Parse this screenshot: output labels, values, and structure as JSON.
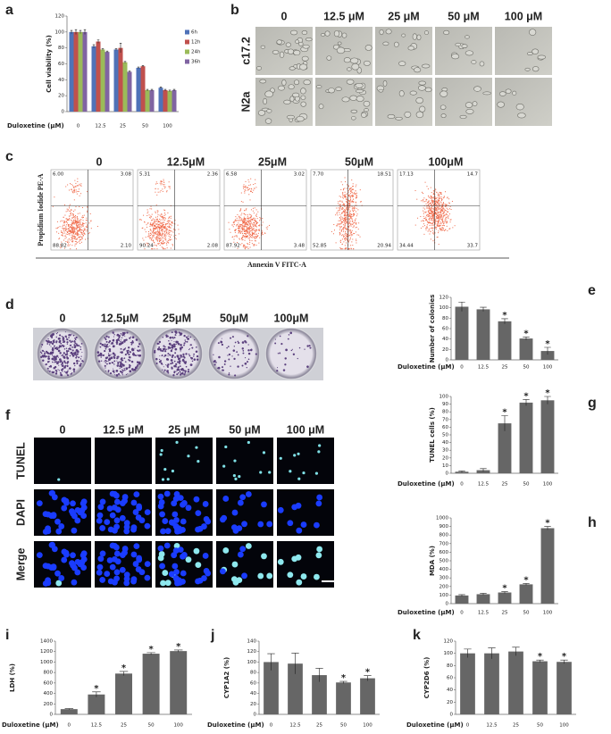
{
  "chart_data": [
    {
      "type": "bar",
      "label": "a",
      "ylabel": "Cell viability (%)",
      "xlabel": "Duloxetine (μM)",
      "categories": [
        "0",
        "12.5",
        "25",
        "50",
        "100"
      ],
      "ylim": [
        0,
        120
      ],
      "yticks": [
        0,
        20,
        40,
        60,
        80,
        100,
        120
      ],
      "legend": "right",
      "series": [
        {
          "name": "6h",
          "color": "#4f72b8",
          "values": [
            100,
            82,
            78,
            55,
            30
          ],
          "errors": [
            2,
            2,
            1,
            1,
            1
          ]
        },
        {
          "name": "12h",
          "color": "#c0504d",
          "values": [
            100,
            88,
            80,
            57,
            27
          ],
          "errors": [
            3,
            2,
            6,
            1,
            1
          ]
        },
        {
          "name": "24h",
          "color": "#9bbb59",
          "values": [
            100,
            78,
            62,
            27,
            26
          ],
          "errors": [
            2,
            1,
            1,
            1,
            1
          ]
        },
        {
          "name": "36h",
          "color": "#8064a2",
          "values": [
            100,
            75,
            50,
            27,
            27
          ],
          "errors": [
            3,
            1,
            1,
            1,
            1
          ]
        }
      ]
    },
    {
      "type": "bar",
      "label": "e",
      "ylabel": "Number of colonies",
      "xlabel": "Duloxetine (μM)",
      "categories": [
        "0",
        "12.5",
        "25",
        "50",
        "100"
      ],
      "ylim": [
        0,
        120
      ],
      "yticks": [
        0,
        20,
        40,
        60,
        80,
        100,
        120
      ],
      "color": "#666666",
      "values": [
        102,
        97,
        74,
        41,
        17
      ],
      "errors": [
        9,
        4,
        5,
        3,
        7
      ],
      "significance": [
        null,
        null,
        "*",
        "*",
        "*"
      ]
    },
    {
      "type": "bar",
      "label": "g",
      "ylabel": "TUNEL cells (%)",
      "xlabel": "Duloxetine (μM)",
      "categories": [
        "0",
        "12.5",
        "25",
        "50",
        "100"
      ],
      "ylim": [
        0,
        100
      ],
      "yticks": [
        0,
        10,
        20,
        30,
        40,
        50,
        60,
        70,
        80,
        90,
        100
      ],
      "color": "#666666",
      "values": [
        2,
        4,
        65,
        92,
        95
      ],
      "errors": [
        1,
        2,
        10,
        4,
        5
      ],
      "significance": [
        null,
        null,
        "*",
        "*",
        "*"
      ]
    },
    {
      "type": "bar",
      "label": "h",
      "ylabel": "MDA (%)",
      "xlabel": "Duloxetine (μM)",
      "categories": [
        "0",
        "12.5",
        "25",
        "50",
        "100"
      ],
      "ylim": [
        0,
        1000
      ],
      "yticks": [
        0,
        100,
        200,
        300,
        400,
        500,
        600,
        700,
        800,
        900,
        1000
      ],
      "color": "#666666",
      "values": [
        95,
        110,
        130,
        225,
        880
      ],
      "errors": [
        10,
        10,
        10,
        10,
        20
      ],
      "significance": [
        null,
        null,
        "*",
        "*",
        "*"
      ]
    },
    {
      "type": "bar",
      "label": "i",
      "ylabel": "LDH (%)",
      "xlabel": "Duloxetine (μM)",
      "categories": [
        "0",
        "12.5",
        "25",
        "50",
        "100"
      ],
      "ylim": [
        0,
        1400
      ],
      "yticks": [
        0,
        200,
        400,
        600,
        800,
        1000,
        1200,
        1400
      ],
      "color": "#666666",
      "values": [
        100,
        380,
        780,
        1160,
        1210
      ],
      "errors": [
        10,
        50,
        40,
        20,
        20
      ],
      "significance": [
        null,
        "*",
        "*",
        "*",
        "*"
      ]
    },
    {
      "type": "bar",
      "label": "j",
      "ylabel": "CYP1A2 (%)",
      "xlabel": "Duloxetine (μM)",
      "categories": [
        "0",
        "12.5",
        "25",
        "50",
        "100"
      ],
      "ylim": [
        0,
        140
      ],
      "yticks": [
        0,
        20,
        40,
        60,
        80,
        100,
        120,
        140
      ],
      "color": "#666666",
      "values": [
        100,
        97,
        75,
        61,
        69
      ],
      "errors": [
        16,
        20,
        13,
        2,
        5
      ],
      "significance": [
        null,
        null,
        null,
        "*",
        "*"
      ]
    },
    {
      "type": "bar",
      "label": "k",
      "ylabel": "CYP2D6 (%)",
      "xlabel": "Duloxetine (μM)",
      "categories": [
        "0",
        "12.5",
        "25",
        "50",
        "100"
      ],
      "ylim": [
        0,
        120
      ],
      "yticks": [
        0,
        20,
        40,
        60,
        80,
        100,
        120
      ],
      "color": "#666666",
      "values": [
        100,
        100,
        103,
        87,
        86
      ],
      "errors": [
        7,
        9,
        7,
        2,
        3
      ],
      "significance": [
        null,
        null,
        null,
        "*",
        "*"
      ]
    }
  ],
  "panel_b": {
    "label": "b",
    "columns": [
      "0",
      "12.5 μM",
      "25 μM",
      "50 μM",
      "100 μM"
    ],
    "rows": [
      "c17.2",
      "N2a"
    ]
  },
  "panel_c": {
    "label": "c",
    "columns": [
      "0",
      "12.5μM",
      "25μM",
      "50μM",
      "100μM"
    ],
    "ylabel": "Propidium Iodide PE-A",
    "xlabel": "Annexin V FITC-A",
    "quadrants": [
      [
        "6.00",
        "3.08",
        "88.82",
        "2.10"
      ],
      [
        "5.31",
        "2.36",
        "90.24",
        "2.08"
      ],
      [
        "6.58",
        "3.02",
        "87.92",
        "3.48"
      ],
      [
        "7.70",
        "18.51",
        "52.85",
        "20.94"
      ],
      [
        "17.13",
        "14.7",
        "34.44",
        "33.7"
      ]
    ]
  },
  "panel_d": {
    "label": "d",
    "columns": [
      "0",
      "12.5μM",
      "25μM",
      "50μM",
      "100μM"
    ]
  },
  "panel_f": {
    "label": "f",
    "columns": [
      "0",
      "12.5 μM",
      "25 μM",
      "50 μM",
      "100 μM"
    ],
    "rows": [
      "TUNEL",
      "DAPI",
      "Merge"
    ]
  }
}
